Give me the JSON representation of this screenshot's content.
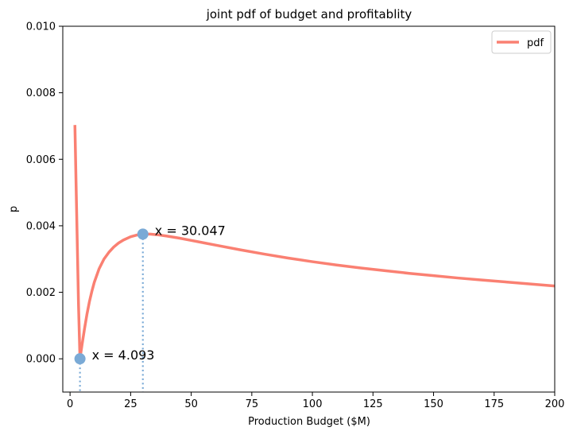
{
  "chart_data": {
    "type": "line",
    "title": "joint pdf of budget and profitablity",
    "xlabel": "Production Budget ($M)",
    "ylabel": "p",
    "xlim": [
      -3,
      200
    ],
    "ylim": [
      -0.001,
      0.01
    ],
    "xticks": [
      0,
      25,
      50,
      75,
      100,
      125,
      150,
      175,
      200
    ],
    "yticks": [
      0.0,
      0.002,
      0.004,
      0.006,
      0.008,
      0.01
    ],
    "ytick_labels": [
      "0.000",
      "0.002",
      "0.004",
      "0.006",
      "0.008",
      "0.010"
    ],
    "grid": false,
    "legend_position": "top-right",
    "series": [
      {
        "name": "pdf",
        "color": "#fa8072",
        "x": [
          2.0,
          2.5,
          3.0,
          3.5,
          4.093,
          5.0,
          6.0,
          7.0,
          8.0,
          9.0,
          10.0,
          12.0,
          14.0,
          16.0,
          18.0,
          20.0,
          22.0,
          25.0,
          28.0,
          30.047,
          33.0,
          36.0,
          40.0,
          45.0,
          50.0,
          55.0,
          60.0,
          70.0,
          80.0,
          90.0,
          100.0,
          110.0,
          120.0,
          130.0,
          140.0,
          150.0,
          160.0,
          170.0,
          180.0,
          190.0,
          200.0
        ],
        "y": [
          0.00703,
          0.0052,
          0.0034,
          0.0016,
          0.0,
          0.00045,
          0.00092,
          0.00135,
          0.00172,
          0.00203,
          0.0023,
          0.00271,
          0.003,
          0.0032,
          0.00336,
          0.00348,
          0.00357,
          0.00367,
          0.00373,
          0.00375,
          0.00375,
          0.00373,
          0.00369,
          0.00363,
          0.00356,
          0.00349,
          0.00342,
          0.00328,
          0.00315,
          0.00303,
          0.00292,
          0.00282,
          0.00273,
          0.00265,
          0.00257,
          0.0025,
          0.00243,
          0.00237,
          0.00231,
          0.00225,
          0.00219
        ]
      }
    ],
    "annotations": [
      {
        "x": 4.093,
        "y": 0.0,
        "label": "x = 4.093",
        "marker_color": "#7aaad6"
      },
      {
        "x": 30.047,
        "y": 0.00375,
        "label": "x = 30.047",
        "marker_color": "#7aaad6"
      }
    ]
  }
}
